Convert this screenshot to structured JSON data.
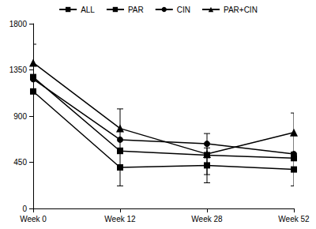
{
  "chart_data": {
    "type": "line",
    "categories": [
      "Week 0",
      "Week 12",
      "Week 28",
      "Week 52"
    ],
    "series": [
      {
        "name": "ALL",
        "color": "#000000",
        "marker": "square",
        "values": [
          1280,
          560,
          520,
          490
        ]
      },
      {
        "name": "PAR",
        "color": "#000000",
        "marker": "square",
        "values": [
          1140,
          400,
          420,
          380
        ],
        "errors": [
          null,
          180,
          170,
          160
        ]
      },
      {
        "name": "CIN",
        "color": "#000000",
        "marker": "circle",
        "values": [
          1260,
          670,
          630,
          530
        ]
      },
      {
        "name": "PAR+CIN",
        "color": "#000000",
        "marker": "triangle",
        "values": [
          1420,
          780,
          530,
          740
        ],
        "errors": [
          180,
          190,
          200,
          190
        ]
      }
    ],
    "ylim": [
      0,
      1800
    ],
    "yticks": [
      0,
      450,
      900,
      1350,
      1800
    ],
    "grid": false,
    "legend": "top"
  }
}
